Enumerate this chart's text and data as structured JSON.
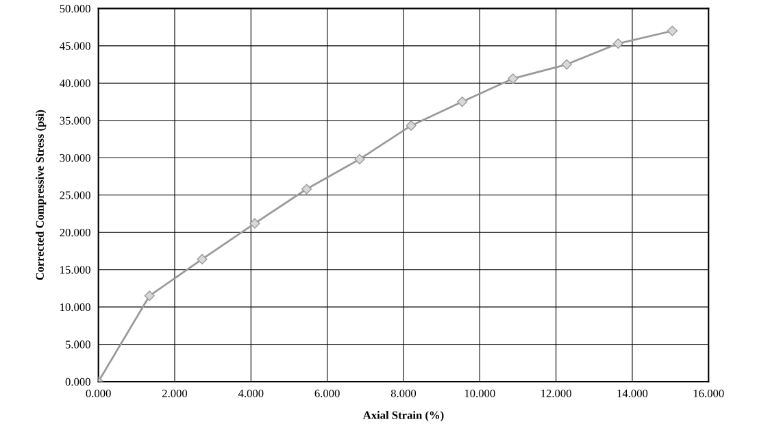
{
  "chart_data": {
    "type": "line",
    "xlabel": "Axial Strain (%)",
    "ylabel": "Corrected Compressive Stress (psi)",
    "x": [
      0,
      1.34,
      2.72,
      4.1,
      5.46,
      6.85,
      8.2,
      9.54,
      10.87,
      12.28,
      13.63,
      15.05
    ],
    "series": [
      {
        "color": "#9a9a9a",
        "values": [
          0,
          11.5,
          16.4,
          21.2,
          25.8,
          29.8,
          34.3,
          37.5,
          40.6,
          42.5,
          45.3,
          47.0
        ]
      }
    ],
    "xlim": [
      0,
      16
    ],
    "ylim": [
      0,
      50
    ],
    "xticks": [
      {
        "value": 0,
        "label": "0.000"
      },
      {
        "value": 2,
        "label": "2.000"
      },
      {
        "value": 4,
        "label": "4.000"
      },
      {
        "value": 6,
        "label": "6.000"
      },
      {
        "value": 8,
        "label": "8.000"
      },
      {
        "value": 10,
        "label": "10.000"
      },
      {
        "value": 12,
        "label": "12.000"
      },
      {
        "value": 14,
        "label": "14.000"
      },
      {
        "value": 16,
        "label": "16.000"
      }
    ],
    "yticks": [
      {
        "value": 0,
        "label": "0.000"
      },
      {
        "value": 5,
        "label": "5.000"
      },
      {
        "value": 10,
        "label": "10.000"
      },
      {
        "value": 15,
        "label": "15.000"
      },
      {
        "value": 20,
        "label": "20.000"
      },
      {
        "value": 25,
        "label": "25.000"
      },
      {
        "value": 30,
        "label": "30.000"
      },
      {
        "value": 35,
        "label": "35.000"
      },
      {
        "value": 40,
        "label": "40.000"
      },
      {
        "value": 45,
        "label": "45.000"
      },
      {
        "value": 50,
        "label": "50.000"
      }
    ],
    "grid": true,
    "marker": "diamond",
    "line_style": "solid"
  }
}
